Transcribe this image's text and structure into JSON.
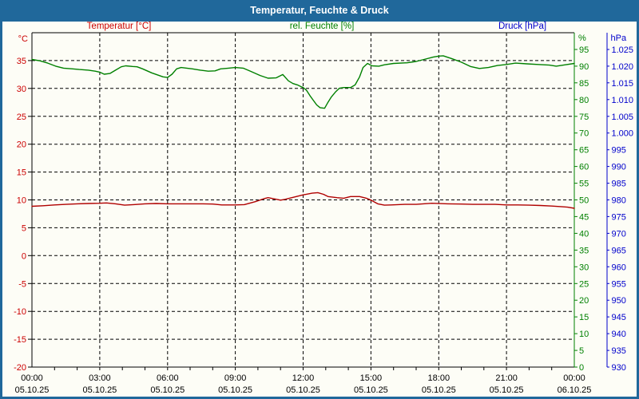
{
  "window": {
    "title": "Temperatur, Feuchte & Druck"
  },
  "legend": {
    "temperature": {
      "label": "Temperatur [°C]",
      "color": "#cc0000"
    },
    "humidity": {
      "label": "rel. Feuchte [%]",
      "color": "#008000"
    },
    "pressure": {
      "label": "Druck [hPa]",
      "color": "#0000cc"
    }
  },
  "axes": {
    "left_unit": "°C",
    "percent_unit": "%",
    "pressure_unit": "hPa",
    "left_range": [
      -20,
      40
    ],
    "left_ticks": [
      35,
      30,
      25,
      20,
      15,
      10,
      5,
      0,
      -5,
      -10,
      -15,
      -20
    ],
    "percent_range": [
      0,
      100
    ],
    "percent_ticks": [
      95,
      90,
      85,
      80,
      75,
      70,
      65,
      60,
      55,
      50,
      45,
      40,
      35,
      30,
      25,
      20,
      15,
      10,
      5,
      0
    ],
    "pressure_tick_labels": [
      "1.025",
      "1.020",
      "1.015",
      "1.010",
      "1.005",
      "1.000",
      "995",
      "990",
      "985",
      "980",
      "975",
      "970",
      "965",
      "960",
      "955",
      "950",
      "945",
      "940",
      "935",
      "930"
    ],
    "x_span_hours": 24,
    "x_grid_step": 3,
    "x_ticks": [
      {
        "hour": 0,
        "time": "00:00",
        "date": "05.10.25"
      },
      {
        "hour": 3,
        "time": "03:00",
        "date": "05.10.25"
      },
      {
        "hour": 6,
        "time": "06:00",
        "date": "05.10.25"
      },
      {
        "hour": 9,
        "time": "09:00",
        "date": "05.10.25"
      },
      {
        "hour": 12,
        "time": "12:00",
        "date": "05.10.25"
      },
      {
        "hour": 15,
        "time": "15:00",
        "date": "05.10.25"
      },
      {
        "hour": 18,
        "time": "18:00",
        "date": "05.10.25"
      },
      {
        "hour": 21,
        "time": "21:00",
        "date": "05.10.25"
      },
      {
        "hour": 24,
        "time": "00:00",
        "date": "06.10.25"
      }
    ]
  },
  "colors": {
    "frame": "#20689b",
    "background": "#fdfdf6",
    "grid": "#000000",
    "red_text": "#cc0000",
    "temperature_line": "#b00000",
    "green": "#008000",
    "blue": "#0000cc"
  },
  "chart_data": {
    "type": "line",
    "title": "Temperatur, Feuchte & Druck",
    "xlabel": "",
    "x_unit": "hours (00:00 05.10.25 – 00:00 06.10.25)",
    "grid": true,
    "axes_summary": {
      "temperature_axis": {
        "unit": "°C",
        "range": [
          -20,
          40
        ],
        "tick_step": 5
      },
      "humidity_axis": {
        "unit": "%",
        "range": [
          0,
          100
        ],
        "tick_step": 5
      },
      "pressure_axis": {
        "unit": "hPa",
        "range": [
          930,
          1030
        ],
        "tick_step": 5,
        "plotted_series_visible": false
      }
    },
    "series": [
      {
        "key": "temperature",
        "name": "Temperatur",
        "unit": "°C",
        "axis": "left",
        "color": "#b00000",
        "points": [
          [
            0,
            8.85
          ],
          [
            0.5,
            8.95
          ],
          [
            1,
            9.1
          ],
          [
            1.5,
            9.2
          ],
          [
            2,
            9.3
          ],
          [
            2.5,
            9.35
          ],
          [
            3,
            9.4
          ],
          [
            3.3,
            9.45
          ],
          [
            3.7,
            9.3
          ],
          [
            4.1,
            9.05
          ],
          [
            4.5,
            9.15
          ],
          [
            5,
            9.3
          ],
          [
            5.5,
            9.35
          ],
          [
            6,
            9.3
          ],
          [
            6.5,
            9.3
          ],
          [
            7,
            9.3
          ],
          [
            7.5,
            9.3
          ],
          [
            8,
            9.25
          ],
          [
            8.4,
            9.1
          ],
          [
            9,
            9.1
          ],
          [
            9.4,
            9.15
          ],
          [
            9.9,
            9.7
          ],
          [
            10.25,
            10.2
          ],
          [
            10.45,
            10.4
          ],
          [
            10.7,
            10.2
          ],
          [
            11,
            9.95
          ],
          [
            11.2,
            10.1
          ],
          [
            11.5,
            10.4
          ],
          [
            12,
            10.9
          ],
          [
            12.4,
            11.2
          ],
          [
            12.65,
            11.3
          ],
          [
            12.9,
            11.0
          ],
          [
            13.1,
            10.6
          ],
          [
            13.5,
            10.4
          ],
          [
            13.8,
            10.3
          ],
          [
            14.1,
            10.6
          ],
          [
            14.5,
            10.6
          ],
          [
            14.8,
            10.3
          ],
          [
            15,
            9.95
          ],
          [
            15.3,
            9.3
          ],
          [
            15.6,
            9.05
          ],
          [
            15.9,
            9.1
          ],
          [
            16.5,
            9.2
          ],
          [
            17,
            9.2
          ],
          [
            17.7,
            9.4
          ],
          [
            18.4,
            9.3
          ],
          [
            19,
            9.25
          ],
          [
            19.5,
            9.2
          ],
          [
            20,
            9.2
          ],
          [
            20.5,
            9.2
          ],
          [
            21,
            9.1
          ],
          [
            21.5,
            9.1
          ],
          [
            22,
            9.05
          ],
          [
            22.5,
            9.0
          ],
          [
            23,
            8.9
          ],
          [
            23.4,
            8.8
          ],
          [
            23.7,
            8.7
          ],
          [
            24,
            8.5
          ]
        ]
      },
      {
        "key": "humidity",
        "name": "rel. Feuchte",
        "unit": "%",
        "axis": "percent",
        "color": "#008000",
        "points": [
          [
            0,
            92
          ],
          [
            0.35,
            91.6
          ],
          [
            0.7,
            90.9
          ],
          [
            1.05,
            90
          ],
          [
            1.4,
            89.4
          ],
          [
            1.8,
            89.2
          ],
          [
            2.1,
            89
          ],
          [
            2.5,
            88.8
          ],
          [
            2.8,
            88.5
          ],
          [
            3,
            88.2
          ],
          [
            3.2,
            87.6
          ],
          [
            3.45,
            87.8
          ],
          [
            3.7,
            88.8
          ],
          [
            3.95,
            89.8
          ],
          [
            4.15,
            90.1
          ],
          [
            4.45,
            89.9
          ],
          [
            4.65,
            89.8
          ],
          [
            4.9,
            89.2
          ],
          [
            5.3,
            88
          ],
          [
            5.55,
            87.4
          ],
          [
            5.8,
            86.8
          ],
          [
            6,
            86.6
          ],
          [
            6.2,
            87.6
          ],
          [
            6.4,
            89.2
          ],
          [
            6.6,
            89.6
          ],
          [
            7.1,
            89.2
          ],
          [
            7.45,
            88.8
          ],
          [
            7.8,
            88.5
          ],
          [
            8.1,
            88.6
          ],
          [
            8.35,
            89.2
          ],
          [
            8.7,
            89.4
          ],
          [
            9,
            89.6
          ],
          [
            9.35,
            89.4
          ],
          [
            9.7,
            88.4
          ],
          [
            10.1,
            87.2
          ],
          [
            10.45,
            86.4
          ],
          [
            10.8,
            86.5
          ],
          [
            11.1,
            87.5
          ],
          [
            11.35,
            85.6
          ],
          [
            11.55,
            84.8
          ],
          [
            11.75,
            84.4
          ],
          [
            11.9,
            83.9
          ],
          [
            12,
            83.6
          ],
          [
            12.15,
            82.8
          ],
          [
            12.3,
            81.2
          ],
          [
            12.45,
            79.8
          ],
          [
            12.6,
            78.4
          ],
          [
            12.75,
            77.6
          ],
          [
            12.95,
            77.4
          ],
          [
            13.1,
            79.2
          ],
          [
            13.25,
            80.8
          ],
          [
            13.45,
            82.4
          ],
          [
            13.6,
            83.4
          ],
          [
            13.8,
            83.6
          ],
          [
            14.1,
            83.6
          ],
          [
            14.3,
            84.4
          ],
          [
            14.5,
            86.8
          ],
          [
            14.65,
            89.6
          ],
          [
            14.85,
            90.8
          ],
          [
            15.05,
            90.1
          ],
          [
            15.35,
            90
          ],
          [
            15.6,
            90.4
          ],
          [
            16,
            90.8
          ],
          [
            16.6,
            91
          ],
          [
            17,
            91.4
          ],
          [
            17.35,
            92
          ],
          [
            17.75,
            92.7
          ],
          [
            18,
            93
          ],
          [
            18.2,
            93.1
          ],
          [
            18.6,
            92.2
          ],
          [
            19,
            91.2
          ],
          [
            19.4,
            89.9
          ],
          [
            19.8,
            89.3
          ],
          [
            20.2,
            89.6
          ],
          [
            20.6,
            90.2
          ],
          [
            21,
            90.5
          ],
          [
            21.4,
            90.9
          ],
          [
            21.9,
            90.7
          ],
          [
            22.4,
            90.5
          ],
          [
            22.9,
            90.3
          ],
          [
            23.2,
            90
          ],
          [
            23.6,
            90.4
          ],
          [
            24,
            90.8
          ]
        ]
      }
    ]
  }
}
